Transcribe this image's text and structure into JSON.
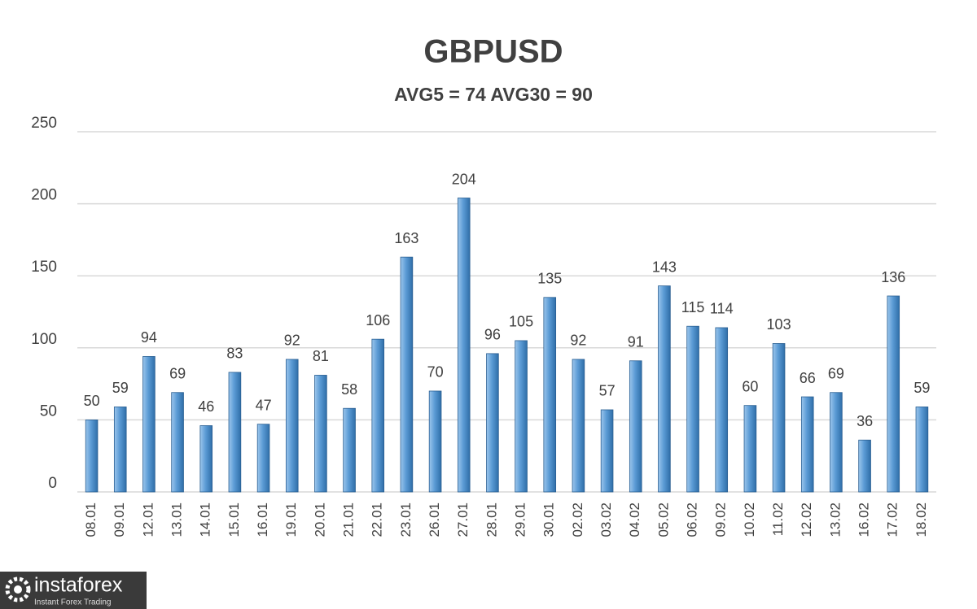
{
  "chart_data": {
    "type": "bar",
    "title": "GBPUSD",
    "subtitle": "AVG5 = 74 AVG30 = 90",
    "categories": [
      "08.01",
      "09.01",
      "12.01",
      "13.01",
      "14.01",
      "15.01",
      "16.01",
      "19.01",
      "20.01",
      "21.01",
      "22.01",
      "23.01",
      "26.01",
      "27.01",
      "28.01",
      "29.01",
      "30.01",
      "02.02",
      "03.02",
      "04.02",
      "05.02",
      "06.02",
      "09.02",
      "10.02",
      "11.02",
      "12.02",
      "13.02",
      "16.02",
      "17.02",
      "18.02"
    ],
    "values": [
      50,
      59,
      94,
      69,
      46,
      83,
      47,
      92,
      81,
      58,
      106,
      163,
      70,
      204,
      96,
      105,
      135,
      92,
      57,
      91,
      143,
      115,
      114,
      60,
      103,
      66,
      69,
      36,
      136,
      59
    ],
    "color": "#5b9bd5",
    "ylim": [
      0,
      250
    ],
    "yticks": [
      0,
      50,
      100,
      150,
      200,
      250
    ],
    "grid": true
  },
  "logo": {
    "name": "instaforex",
    "tagline": "Instant Forex Trading"
  }
}
